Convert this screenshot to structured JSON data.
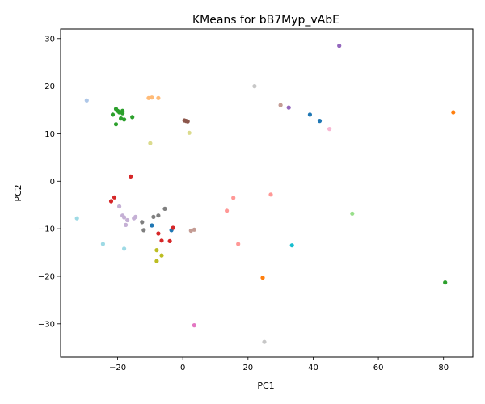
{
  "chart_data": {
    "type": "scatter",
    "title": "KMeans for bB7Myp_vAbE",
    "xlabel": "PC1",
    "ylabel": "PC2",
    "xlim": [
      -37.5,
      89
    ],
    "ylim": [
      -37,
      32
    ],
    "xticks": [
      -20,
      0,
      20,
      40,
      60,
      80
    ],
    "yticks": [
      -30,
      -20,
      -10,
      0,
      10,
      20,
      30
    ],
    "grid": false,
    "legend": "none",
    "points": [
      {
        "x": 48.0,
        "y": 28.5,
        "color": "#9467bd"
      },
      {
        "x": -29.5,
        "y": 17.0,
        "color": "#aec7e8"
      },
      {
        "x": 22.0,
        "y": 20.0,
        "color": "#c7c7c7"
      },
      {
        "x": -10.5,
        "y": 17.5,
        "color": "#ffbb78"
      },
      {
        "x": -9.5,
        "y": 17.6,
        "color": "#ffbb78"
      },
      {
        "x": -7.5,
        "y": 17.5,
        "color": "#ffbb78"
      },
      {
        "x": 30.0,
        "y": 16.0,
        "color": "#c49c94"
      },
      {
        "x": 32.5,
        "y": 15.5,
        "color": "#9467bd"
      },
      {
        "x": 83.0,
        "y": 14.5,
        "color": "#ff7f0e"
      },
      {
        "x": 39.0,
        "y": 14.0,
        "color": "#1f77b4"
      },
      {
        "x": 42.0,
        "y": 12.7,
        "color": "#1f77b4"
      },
      {
        "x": 45.0,
        "y": 11.0,
        "color": "#f7b6d2"
      },
      {
        "x": -21.5,
        "y": 14.0,
        "color": "#2ca02c"
      },
      {
        "x": -20.5,
        "y": 15.2,
        "color": "#2ca02c"
      },
      {
        "x": -20.0,
        "y": 14.8,
        "color": "#2ca02c"
      },
      {
        "x": -19.5,
        "y": 14.5,
        "color": "#2ca02c"
      },
      {
        "x": -18.5,
        "y": 14.8,
        "color": "#2ca02c"
      },
      {
        "x": -18.5,
        "y": 14.3,
        "color": "#2ca02c"
      },
      {
        "x": -19.0,
        "y": 13.2,
        "color": "#2ca02c"
      },
      {
        "x": -18.0,
        "y": 13.0,
        "color": "#2ca02c"
      },
      {
        "x": -15.5,
        "y": 13.5,
        "color": "#2ca02c"
      },
      {
        "x": -20.5,
        "y": 12.0,
        "color": "#2ca02c"
      },
      {
        "x": 0.5,
        "y": 12.8,
        "color": "#8c564b"
      },
      {
        "x": 1.0,
        "y": 12.7,
        "color": "#8c564b"
      },
      {
        "x": 1.5,
        "y": 12.6,
        "color": "#8c564b"
      },
      {
        "x": 2.0,
        "y": 10.2,
        "color": "#dbdb8d"
      },
      {
        "x": -10.0,
        "y": 8.0,
        "color": "#dbdb8d"
      },
      {
        "x": -16.0,
        "y": 1.0,
        "color": "#d62728"
      },
      {
        "x": 27.0,
        "y": -2.8,
        "color": "#ff9896"
      },
      {
        "x": 15.5,
        "y": -3.5,
        "color": "#ff9896"
      },
      {
        "x": 13.5,
        "y": -6.2,
        "color": "#ff9896"
      },
      {
        "x": -22.0,
        "y": -4.2,
        "color": "#d62728"
      },
      {
        "x": -21.0,
        "y": -3.4,
        "color": "#d62728"
      },
      {
        "x": -19.5,
        "y": -5.3,
        "color": "#c5b0d5"
      },
      {
        "x": -5.5,
        "y": -5.8,
        "color": "#7f7f7f"
      },
      {
        "x": 52.0,
        "y": -6.8,
        "color": "#98df8a"
      },
      {
        "x": -32.5,
        "y": -7.8,
        "color": "#9edae5"
      },
      {
        "x": -18.5,
        "y": -7.2,
        "color": "#c5b0d5"
      },
      {
        "x": -18.0,
        "y": -7.6,
        "color": "#c5b0d5"
      },
      {
        "x": -17.0,
        "y": -8.2,
        "color": "#c5b0d5"
      },
      {
        "x": -15.0,
        "y": -7.8,
        "color": "#c5b0d5"
      },
      {
        "x": -14.5,
        "y": -7.5,
        "color": "#c5b0d5"
      },
      {
        "x": -17.5,
        "y": -9.2,
        "color": "#c5b0d5"
      },
      {
        "x": -12.5,
        "y": -8.6,
        "color": "#7f7f7f"
      },
      {
        "x": -9.0,
        "y": -7.5,
        "color": "#7f7f7f"
      },
      {
        "x": -7.5,
        "y": -7.2,
        "color": "#7f7f7f"
      },
      {
        "x": -12.0,
        "y": -10.3,
        "color": "#7f7f7f"
      },
      {
        "x": -9.5,
        "y": -9.3,
        "color": "#1f77b4"
      },
      {
        "x": -3.5,
        "y": -10.3,
        "color": "#1f77b4"
      },
      {
        "x": -3.0,
        "y": -9.8,
        "color": "#d62728"
      },
      {
        "x": -7.5,
        "y": -11.0,
        "color": "#d62728"
      },
      {
        "x": -6.5,
        "y": -12.5,
        "color": "#d62728"
      },
      {
        "x": -4.0,
        "y": -12.6,
        "color": "#d62728"
      },
      {
        "x": 2.5,
        "y": -10.4,
        "color": "#c49c94"
      },
      {
        "x": 3.5,
        "y": -10.2,
        "color": "#c49c94"
      },
      {
        "x": 17.0,
        "y": -13.2,
        "color": "#ff9896"
      },
      {
        "x": -24.5,
        "y": -13.2,
        "color": "#9edae5"
      },
      {
        "x": -18.0,
        "y": -14.2,
        "color": "#9edae5"
      },
      {
        "x": 33.5,
        "y": -13.5,
        "color": "#17becf"
      },
      {
        "x": -8.0,
        "y": -14.5,
        "color": "#bcbd22"
      },
      {
        "x": -6.5,
        "y": -15.6,
        "color": "#bcbd22"
      },
      {
        "x": -8.0,
        "y": -16.8,
        "color": "#bcbd22"
      },
      {
        "x": 24.5,
        "y": -20.3,
        "color": "#ff7f0e"
      },
      {
        "x": 80.5,
        "y": -21.3,
        "color": "#2ca02c"
      },
      {
        "x": 3.5,
        "y": -30.3,
        "color": "#e377c2"
      },
      {
        "x": 25.0,
        "y": -33.8,
        "color": "#c7c7c7"
      }
    ]
  }
}
